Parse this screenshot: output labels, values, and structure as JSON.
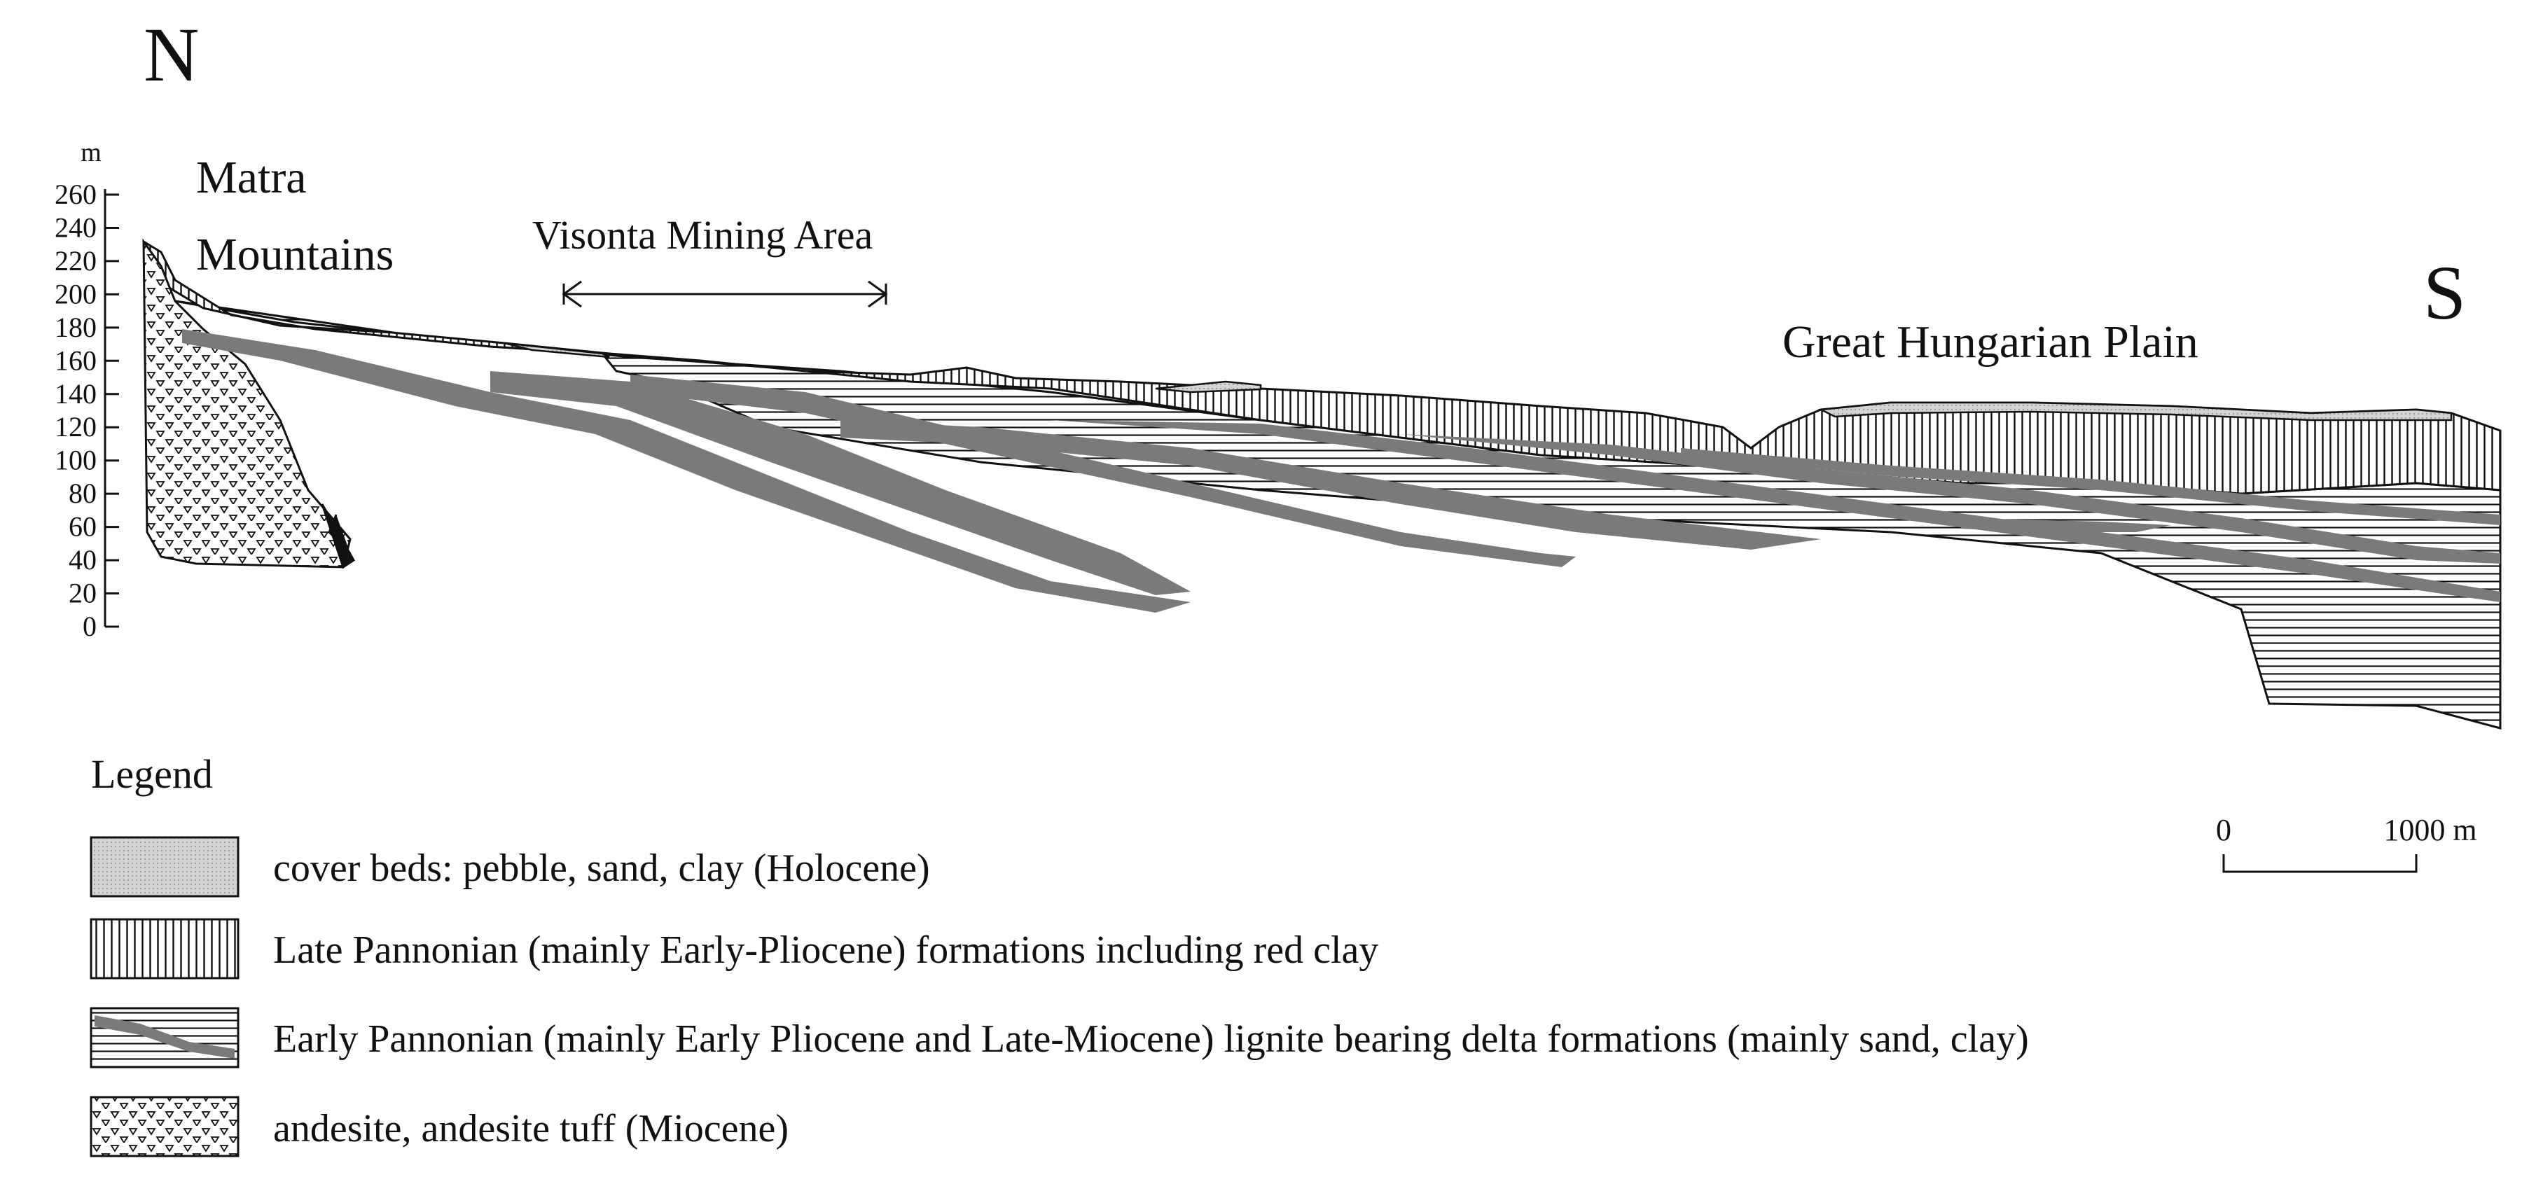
{
  "compass": {
    "north": "N",
    "south": "S"
  },
  "axis": {
    "unit": "m",
    "ticks": [
      "260",
      "240",
      "220",
      "200",
      "180",
      "160",
      "140",
      "120",
      "100",
      "80",
      "60",
      "40",
      "20",
      "0"
    ]
  },
  "labels": {
    "matra_line1": "Matra",
    "matra_line2": "Mountains",
    "visonta": "Visonta Mining Area",
    "plain": "Great Hungarian Plain"
  },
  "scale_bar": {
    "start": "0",
    "end": "1000 m"
  },
  "legend": {
    "title": "Legend",
    "items": [
      {
        "pattern": "dotted-gray",
        "text": "cover beds: pebble, sand, clay (Holocene)"
      },
      {
        "pattern": "vertical-lines",
        "text": "Late Pannonian (mainly Early-Pliocene) formations including red clay"
      },
      {
        "pattern": "horizontal-lines-lignite",
        "text": "Early Pannonian (mainly Early Pliocene and Late-Miocene) lignite bearing delta formations (mainly sand, clay)"
      },
      {
        "pattern": "triangles",
        "text": "andesite, andesite tuff (Miocene)"
      }
    ]
  },
  "colors": {
    "ink": "#111111",
    "lignite": "#7a7a7a",
    "cover": "#d2d2d2"
  }
}
